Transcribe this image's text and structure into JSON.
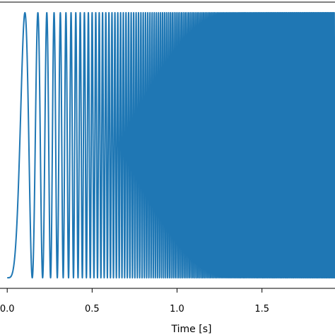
{
  "chart_data": {
    "type": "line",
    "title": "",
    "xlabel": "Time [s]",
    "ylabel": "",
    "xlim": [
      -0.03,
      1.93
    ],
    "ylim": [
      -1.08,
      1.08
    ],
    "x_ticks": [
      0.0,
      0.5,
      1.0,
      1.5
    ],
    "x_tick_labels": [
      "0.0",
      "0.5",
      "1.0",
      "1.5"
    ],
    "grid": false,
    "legend": "none",
    "series": [
      {
        "signal": "linear chirp",
        "amplitude": 1.0,
        "phase_at_t0": "minimum",
        "start_frequency_hz": 0,
        "frequency_sweep_rate_hz_per_s": 92,
        "x_start": 0.0,
        "x_end": 1.93,
        "color": "#1f77b4"
      }
    ]
  }
}
